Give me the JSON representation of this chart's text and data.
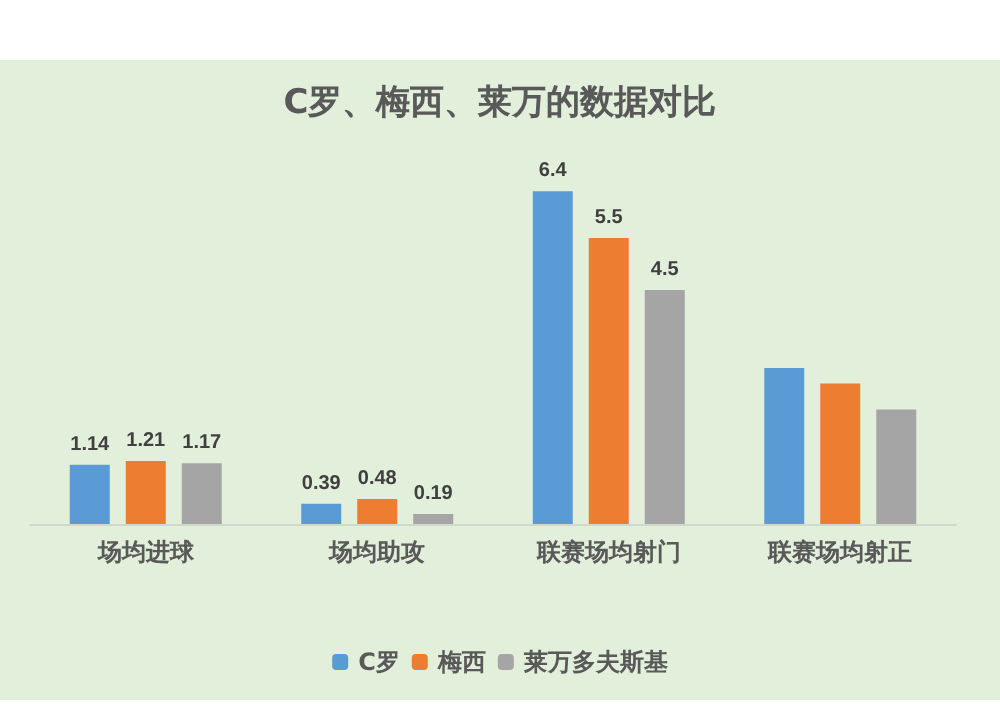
{
  "chart_data": {
    "type": "bar",
    "title": "C罗、梅西、莱万的数据对比",
    "categories": [
      "场均进球",
      "场均助攻",
      "联赛场均射门",
      "联赛场均射正"
    ],
    "series": [
      {
        "name": "C罗",
        "color": "#5b9bd5",
        "values": [
          1.14,
          0.39,
          6.4,
          3.0
        ],
        "value_labels": [
          "1.14",
          "0.39",
          "6.4",
          null
        ]
      },
      {
        "name": "梅西",
        "color": "#ed7d31",
        "values": [
          1.21,
          0.48,
          5.5,
          2.7
        ],
        "value_labels": [
          "1.21",
          "0.48",
          "5.5",
          null
        ]
      },
      {
        "name": "莱万多夫斯基",
        "color": "#a5a5a5",
        "values": [
          1.17,
          0.19,
          4.5,
          2.2
        ],
        "value_labels": [
          "1.17",
          "0.19",
          "4.5",
          null
        ]
      }
    ],
    "grid": false,
    "legend": "bottom"
  }
}
